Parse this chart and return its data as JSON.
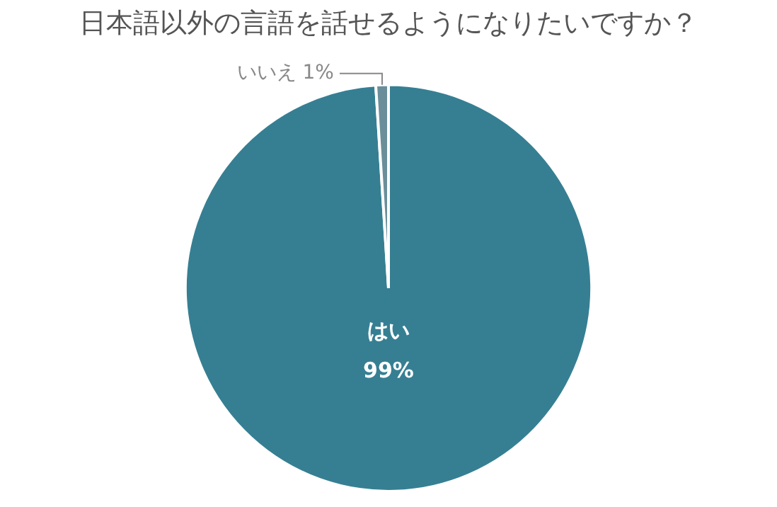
{
  "chart_data": {
    "type": "pie",
    "title": "日本語以外の言語を話せるようになりたいですか？",
    "categories": [
      "はい",
      "いいえ"
    ],
    "values": [
      99,
      1
    ],
    "value_labels": [
      "99%",
      "1%"
    ],
    "colors": [
      "#367f93",
      "#6a8f9a"
    ],
    "legend": false
  }
}
